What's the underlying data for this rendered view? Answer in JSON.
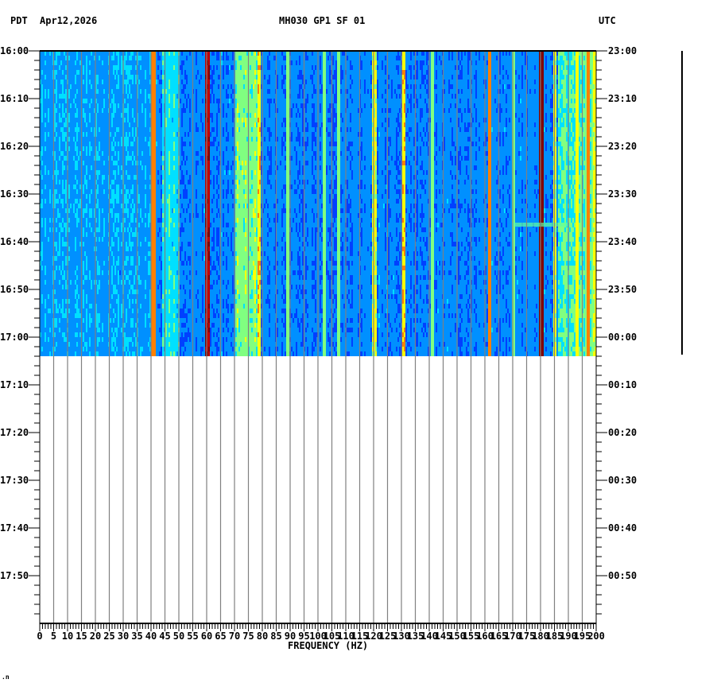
{
  "header": {
    "left_tz": "PDT",
    "date": "Apr12,2026",
    "station": "MH030 GP1 SF 01",
    "right_tz": "UTC"
  },
  "footer_mark": ".n",
  "chart_data": {
    "type": "heatmap",
    "title": "MH030 GP1 SF 01",
    "xlabel": "FREQUENCY (HZ)",
    "ylabel_left": "PDT",
    "ylabel_right": "UTC",
    "xlim": [
      0,
      200
    ],
    "x_ticks": [
      0,
      5,
      10,
      15,
      20,
      25,
      30,
      35,
      40,
      45,
      50,
      55,
      60,
      65,
      70,
      75,
      80,
      85,
      90,
      95,
      100,
      105,
      110,
      115,
      120,
      125,
      130,
      135,
      140,
      145,
      150,
      155,
      160,
      165,
      170,
      175,
      180,
      185,
      190,
      195,
      200
    ],
    "y_ticks_left": [
      "16:00",
      "16:10",
      "16:20",
      "16:30",
      "16:40",
      "16:50",
      "17:00",
      "17:10",
      "17:20",
      "17:30",
      "17:40",
      "17:50"
    ],
    "y_ticks_right": [
      "23:00",
      "23:10",
      "23:20",
      "23:30",
      "23:40",
      "23:50",
      "00:00",
      "00:10",
      "00:20",
      "00:30",
      "00:40",
      "00:50"
    ],
    "time_span_minutes": 120,
    "data_end_minutes": 64,
    "colormap": [
      "#0000c8",
      "#0040ff",
      "#0090ff",
      "#00e0ff",
      "#80ff80",
      "#ffff00",
      "#ff8000",
      "#c00000",
      "#800000"
    ],
    "strong_lines_hz": [
      {
        "hz": 60,
        "level": 0.95
      },
      {
        "hz": 180,
        "level": 1.0
      },
      {
        "hz": 40.5,
        "level": 0.75
      },
      {
        "hz": 78.5,
        "level": 0.7
      },
      {
        "hz": 130.5,
        "level": 0.7
      },
      {
        "hz": 161.5,
        "level": 0.75
      },
      {
        "hz": 197,
        "level": 0.75
      },
      {
        "hz": 120,
        "level": 0.6
      },
      {
        "hz": 89,
        "level": 0.55
      },
      {
        "hz": 102,
        "level": 0.5
      },
      {
        "hz": 107,
        "level": 0.5
      },
      {
        "hz": 141,
        "level": 0.5
      },
      {
        "hz": 170,
        "level": 0.55
      },
      {
        "hz": 185,
        "level": 0.6
      },
      {
        "hz": 193,
        "level": 0.65
      },
      {
        "hz": 199,
        "level": 0.6
      }
    ],
    "broad_bands_hz": [
      {
        "from": 44,
        "to": 50,
        "level": 0.45
      },
      {
        "from": 70,
        "to": 78,
        "level": 0.55
      },
      {
        "from": 186,
        "to": 199,
        "level": 0.5
      }
    ],
    "grid": true
  }
}
